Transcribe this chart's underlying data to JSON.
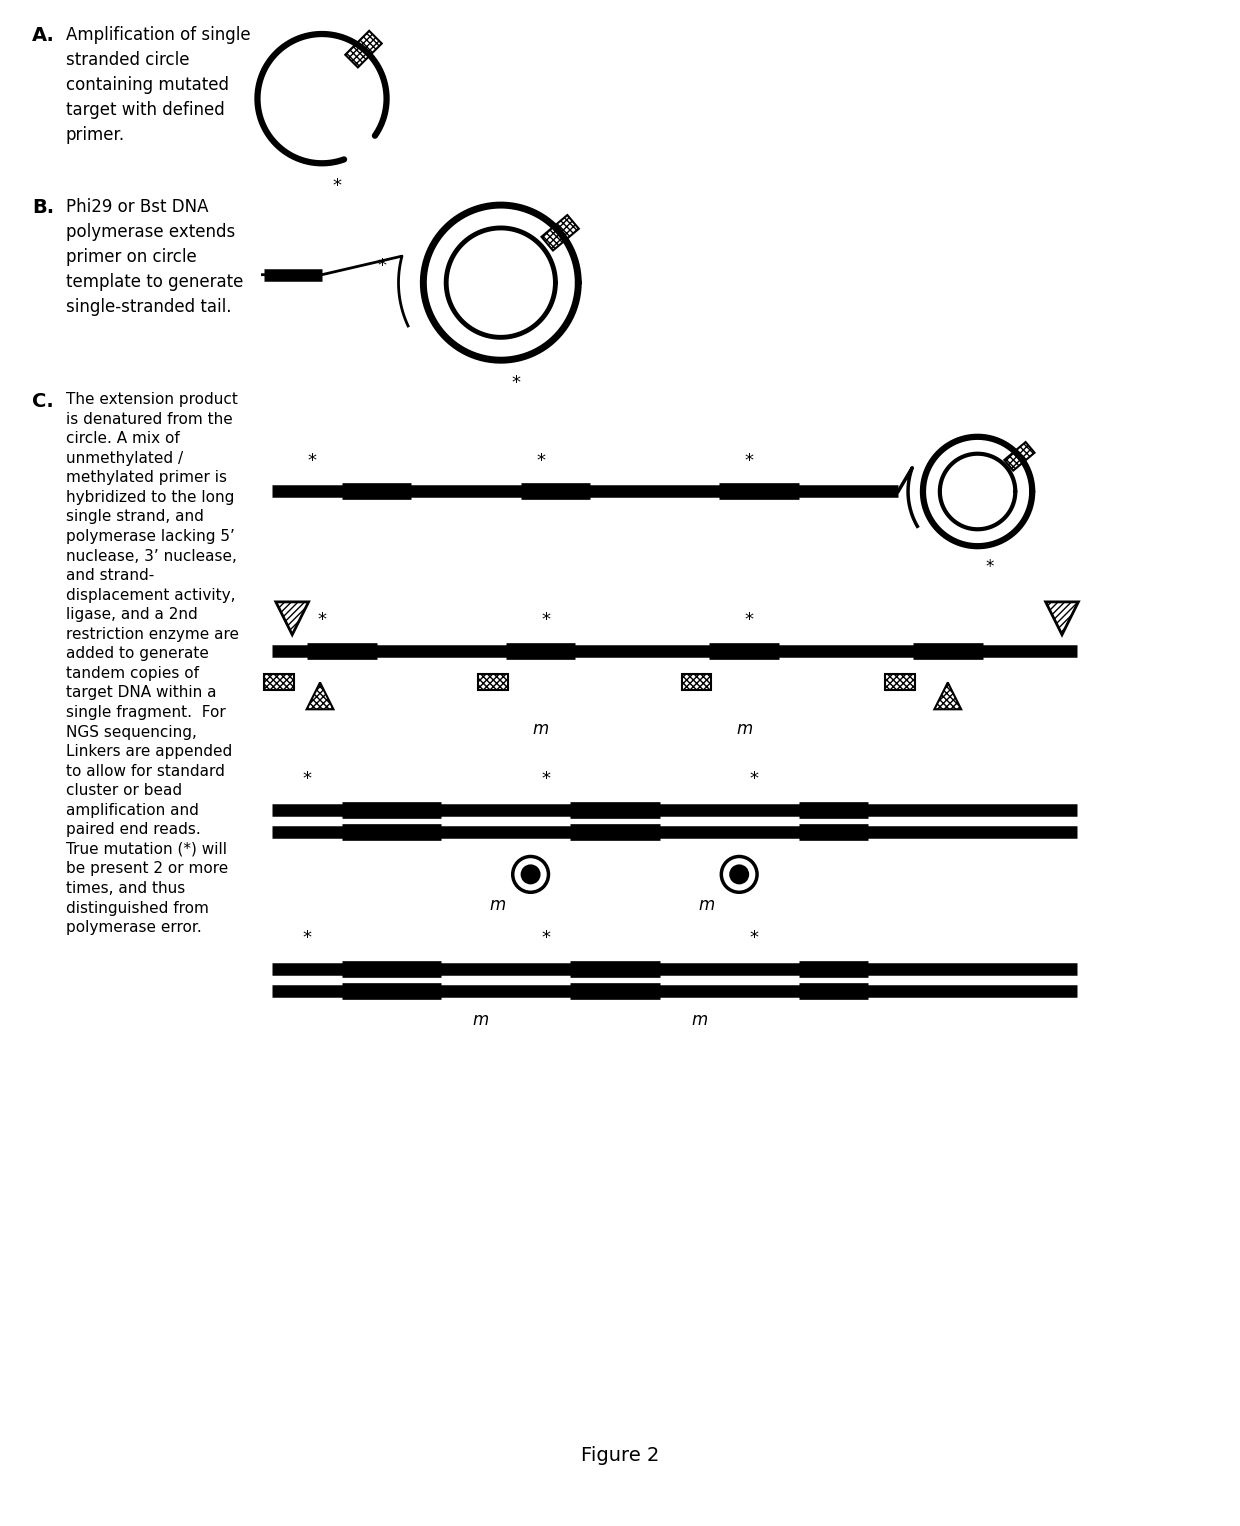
{
  "bg_color": "#ffffff",
  "fig_width": 12.4,
  "fig_height": 15.26,
  "label_A": "A.",
  "label_B": "B.",
  "label_C": "C.",
  "text_A": "Amplification of single\nstranded circle\ncontaining mutated\ntarget with defined\nprimer.",
  "text_B": "Phi29 or Bst DNA\npolymerase extends\nprimer on circle\ntemplate to generate\nsingle-stranded tail.",
  "text_C": "The extension product\nis denatured from the\ncircle. A mix of\nunmethylated /\nmethylated primer is\nhybridized to the long\nsingle strand, and\npolymerase lacking 5’\nnuclease, 3’ nuclease,\nand strand-\ndisplacement activity,\nligase, and a 2nd\nrestriction enzyme are\nadded to generate\ntandem copies of\ntarget DNA within a\nsingle fragment.  For\nNGS sequencing,\nLinkers are appended\nto allow for standard\ncluster or bead\namplification and\npaired end reads.\nTrue mutation (*) will\nbe present 2 or more\ntimes, and thus\ndistinguished from\npolymerase error.",
  "figure_label": "Figure 2",
  "dpi": 100
}
